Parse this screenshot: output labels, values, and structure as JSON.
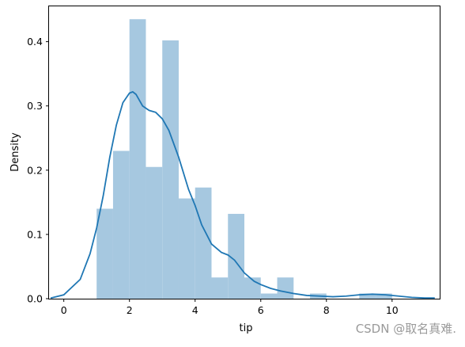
{
  "chart_data": {
    "type": "histogram",
    "xlabel": "tip",
    "ylabel": "Density",
    "xlim": [
      -0.45,
      11.45
    ],
    "ylim": [
      0,
      0.455
    ],
    "x_ticks": [
      0,
      2,
      4,
      6,
      8,
      10
    ],
    "y_ticks": [
      0.0,
      0.1,
      0.2,
      0.3,
      0.4
    ],
    "x_tick_labels": [
      "0",
      "2",
      "4",
      "6",
      "8",
      "10"
    ],
    "y_tick_labels": [
      "0.0",
      "0.1",
      "0.2",
      "0.3",
      "0.4"
    ],
    "grid": false,
    "bar_color": "#a6c8e0",
    "kde_color": "#1f77b4",
    "bin_edges": [
      1.0,
      1.5,
      2.0,
      2.5,
      3.0,
      3.5,
      4.0,
      4.5,
      5.0,
      5.5,
      6.0,
      6.5,
      7.0,
      7.5,
      8.0,
      8.5,
      9.0,
      9.5,
      10.0
    ],
    "bar_heights": [
      0.14,
      0.23,
      0.435,
      0.205,
      0.402,
      0.156,
      0.173,
      0.033,
      0.132,
      0.033,
      0.008,
      0.033,
      0.0,
      0.008,
      0.0,
      0.0,
      0.008,
      0.008
    ],
    "kde_curve": {
      "x": [
        -0.4,
        0.0,
        0.5,
        0.8,
        1.0,
        1.2,
        1.4,
        1.6,
        1.8,
        2.0,
        2.1,
        2.2,
        2.4,
        2.6,
        2.8,
        3.0,
        3.2,
        3.5,
        3.8,
        4.0,
        4.2,
        4.5,
        4.8,
        5.0,
        5.2,
        5.5,
        5.8,
        6.0,
        6.3,
        6.6,
        7.0,
        7.4,
        7.8,
        8.2,
        8.6,
        9.0,
        9.4,
        9.8,
        10.2,
        10.6,
        11.0,
        11.3
      ],
      "y": [
        0.001,
        0.006,
        0.03,
        0.07,
        0.11,
        0.16,
        0.22,
        0.27,
        0.305,
        0.32,
        0.322,
        0.318,
        0.3,
        0.293,
        0.29,
        0.28,
        0.262,
        0.22,
        0.17,
        0.145,
        0.115,
        0.085,
        0.072,
        0.068,
        0.06,
        0.04,
        0.027,
        0.022,
        0.016,
        0.012,
        0.008,
        0.005,
        0.004,
        0.003,
        0.004,
        0.006,
        0.007,
        0.006,
        0.004,
        0.002,
        0.001,
        0.001
      ]
    }
  },
  "watermark": "CSDN @取名真难."
}
